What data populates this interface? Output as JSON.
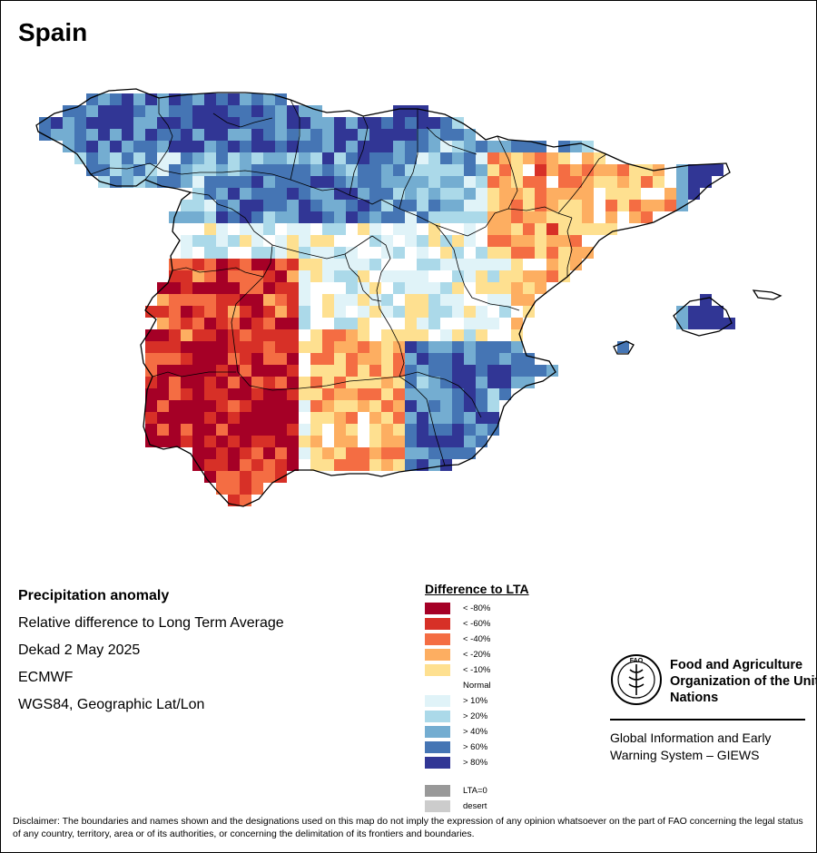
{
  "map_title": "Spain",
  "info": {
    "line1": "Precipitation anomaly",
    "line2": "Relative difference to Long Term Average",
    "line3": "Dekad 2 May 2025",
    "line4": "ECMWF",
    "line5": "WGS84, Geographic Lat/Lon"
  },
  "legend": {
    "title": "Difference to LTA",
    "classes": [
      {
        "label": "< -80%",
        "color": "#a50026"
      },
      {
        "label": "< -60%",
        "color": "#d73027"
      },
      {
        "label": "< -40%",
        "color": "#f46d43"
      },
      {
        "label": "< -20%",
        "color": "#fdae61"
      },
      {
        "label": "< -10%",
        "color": "#fee090"
      },
      {
        "label": "Normal",
        "color": "#ffffff"
      },
      {
        "label": "> 10%",
        "color": "#e0f3f8"
      },
      {
        "label": "> 20%",
        "color": "#abd9e9"
      },
      {
        "label": "> 40%",
        "color": "#74add1"
      },
      {
        "label": "> 60%",
        "color": "#4575b4"
      },
      {
        "label": "> 80%",
        "color": "#313695"
      }
    ],
    "special": [
      {
        "label": "LTA=0",
        "color": "#999999"
      },
      {
        "label": "desert",
        "color": "#cccccc"
      }
    ]
  },
  "org": {
    "name": "Food and Agriculture Organization of the United Nations",
    "system": "Global Information and Early Warning System – GIEWS",
    "logo_text": "FAO"
  },
  "disclaimer": "Disclaimer: The boundaries and names shown and the designations used on this map do not imply the expression of any opinion whatsoever on the part of FAO concerning the legal status of any country, territory, area or of its authorities, or concerning the delimitation of its frontiers and boundaries."
}
